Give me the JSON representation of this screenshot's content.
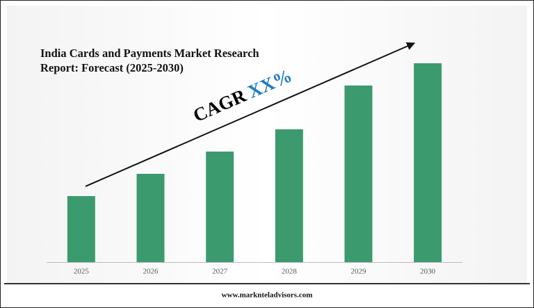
{
  "chart_data": {
    "type": "bar",
    "title": "India Cards and Payments Market Research Report: Forecast (2025-2030)",
    "categories": [
      "2025",
      "2026",
      "2027",
      "2028",
      "2029",
      "2030"
    ],
    "values": [
      95,
      127,
      159,
      191,
      254,
      286
    ],
    "color": "#3c9a6f",
    "ylim": [
      0,
      300
    ],
    "annotation": {
      "text": "CAGR",
      "highlight": "XX%",
      "highlight_color": "#1f7bc1"
    },
    "footer": "www.marknteladvisors.com"
  }
}
